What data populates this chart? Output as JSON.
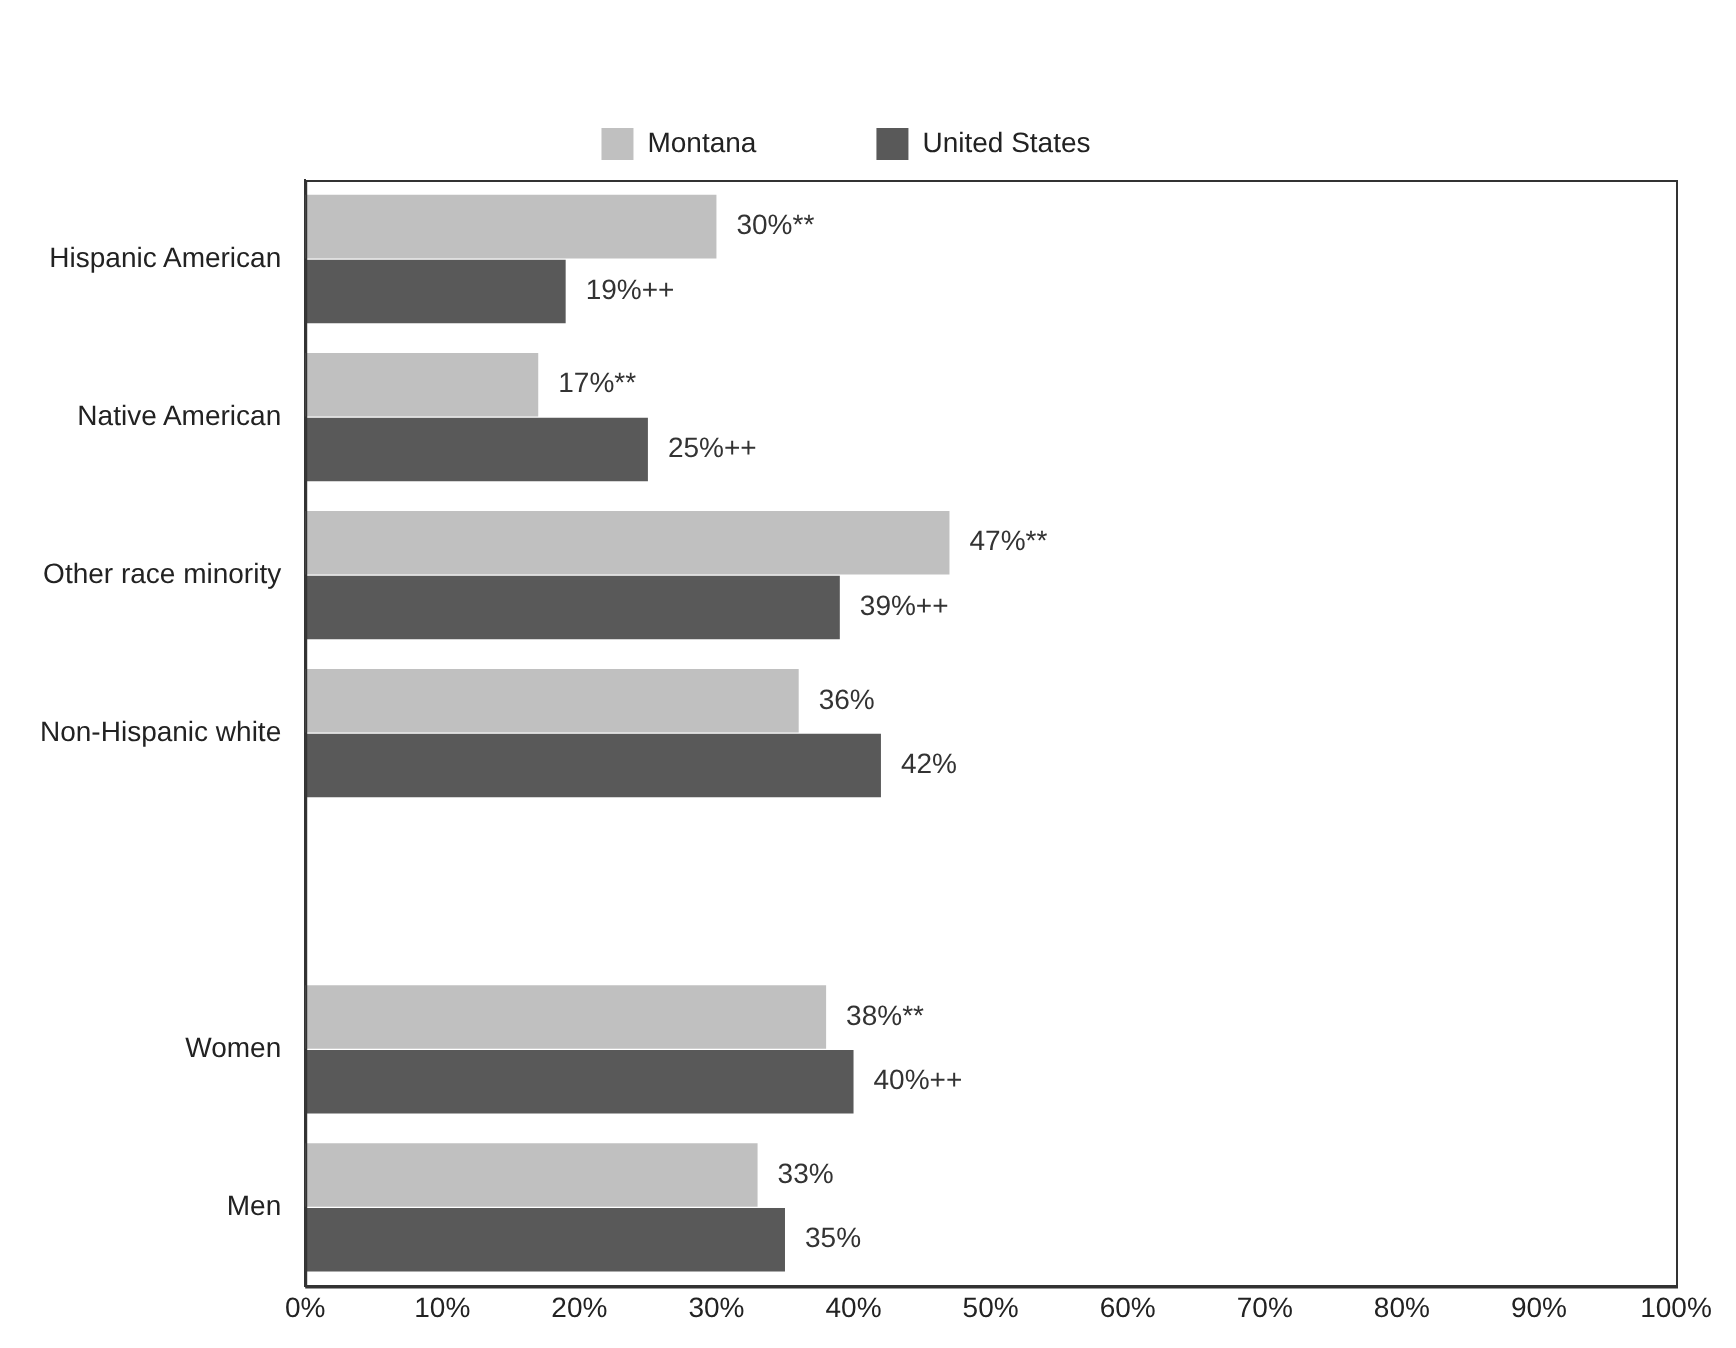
{
  "chart_data": {
    "type": "bar",
    "orientation": "horizontal",
    "legend": "top",
    "grid": false,
    "categories": [
      "Hispanic American",
      "Native American",
      "Other race minority",
      "Non-Hispanic white",
      null,
      "Women",
      "Men"
    ],
    "series": [
      {
        "name": "Montana",
        "color": "#c0c0c0",
        "values": [
          30,
          17,
          47,
          36,
          null,
          38,
          33
        ],
        "value_labels": [
          "30%**",
          "17%**",
          "47%**",
          "36%",
          null,
          "38%**",
          "33%"
        ]
      },
      {
        "name": "United States",
        "color": "#595959",
        "values": [
          19,
          25,
          39,
          42,
          null,
          40,
          35
        ],
        "value_labels": [
          "19%++",
          "25%++",
          "39%++",
          "42%",
          null,
          "40%++",
          "35%"
        ]
      }
    ],
    "xlim": [
      0,
      100
    ],
    "xticks": [
      {
        "value": 0,
        "label": "0%"
      },
      {
        "value": 10,
        "label": "10%"
      },
      {
        "value": 20,
        "label": "20%"
      },
      {
        "value": 30,
        "label": "30%"
      },
      {
        "value": 40,
        "label": "40%"
      },
      {
        "value": 50,
        "label": "50%"
      },
      {
        "value": 60,
        "label": "60%"
      },
      {
        "value": 70,
        "label": "70%"
      },
      {
        "value": 80,
        "label": "80%"
      },
      {
        "value": 90,
        "label": "90%"
      },
      {
        "value": 100,
        "label": "100%"
      }
    ]
  }
}
